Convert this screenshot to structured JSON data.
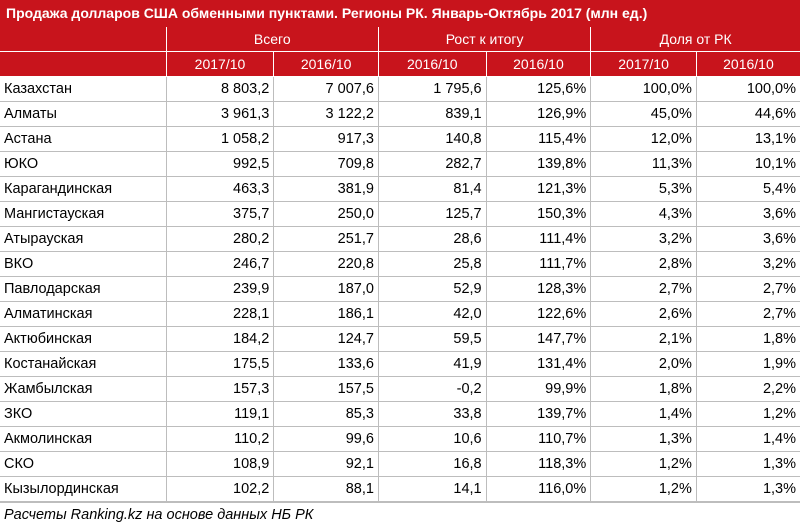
{
  "title": "Продажа долларов США обменными пунктами. Регионы РК. Январь-Октябрь 2017 (млн ед.)",
  "groups": {
    "total": "Всего",
    "growth": "Рост к итогу",
    "share": "Доля от РК"
  },
  "subheaders": [
    "2017/10",
    "2016/10",
    "2016/10",
    "2016/10",
    "2017/10",
    "2016/10"
  ],
  "rows": [
    [
      "Казахстан",
      "8 803,2",
      "7 007,6",
      "1 795,6",
      "125,6%",
      "100,0%",
      "100,0%"
    ],
    [
      "Алматы",
      "3 961,3",
      "3 122,2",
      "839,1",
      "126,9%",
      "45,0%",
      "44,6%"
    ],
    [
      "Астана",
      "1 058,2",
      "917,3",
      "140,8",
      "115,4%",
      "12,0%",
      "13,1%"
    ],
    [
      "ЮКО",
      "992,5",
      "709,8",
      "282,7",
      "139,8%",
      "11,3%",
      "10,1%"
    ],
    [
      "Карагандинская",
      "463,3",
      "381,9",
      "81,4",
      "121,3%",
      "5,3%",
      "5,4%"
    ],
    [
      "Мангистауская",
      "375,7",
      "250,0",
      "125,7",
      "150,3%",
      "4,3%",
      "3,6%"
    ],
    [
      "Атырауская",
      "280,2",
      "251,7",
      "28,6",
      "111,4%",
      "3,2%",
      "3,6%"
    ],
    [
      "ВКО",
      "246,7",
      "220,8",
      "25,8",
      "111,7%",
      "2,8%",
      "3,2%"
    ],
    [
      "Павлодарская",
      "239,9",
      "187,0",
      "52,9",
      "128,3%",
      "2,7%",
      "2,7%"
    ],
    [
      "Алматинская",
      "228,1",
      "186,1",
      "42,0",
      "122,6%",
      "2,6%",
      "2,7%"
    ],
    [
      "Актюбинская",
      "184,2",
      "124,7",
      "59,5",
      "147,7%",
      "2,1%",
      "1,8%"
    ],
    [
      "Костанайская",
      "175,5",
      "133,6",
      "41,9",
      "131,4%",
      "2,0%",
      "1,9%"
    ],
    [
      "Жамбылская",
      "157,3",
      "157,5",
      "-0,2",
      "99,9%",
      "1,8%",
      "2,2%"
    ],
    [
      "ЗКО",
      "119,1",
      "85,3",
      "33,8",
      "139,7%",
      "1,4%",
      "1,2%"
    ],
    [
      "Акмолинская",
      "110,2",
      "99,6",
      "10,6",
      "110,7%",
      "1,3%",
      "1,4%"
    ],
    [
      "СКО",
      "108,9",
      "92,1",
      "16,8",
      "118,3%",
      "1,2%",
      "1,3%"
    ],
    [
      "Кызылординская",
      "102,2",
      "88,1",
      "14,1",
      "116,0%",
      "1,2%",
      "1,3%"
    ]
  ],
  "footer": "Расчеты Ranking.kz на основе данных НБ РК",
  "colors": {
    "header_bg": "#c8141c",
    "header_text": "#ffffff"
  }
}
